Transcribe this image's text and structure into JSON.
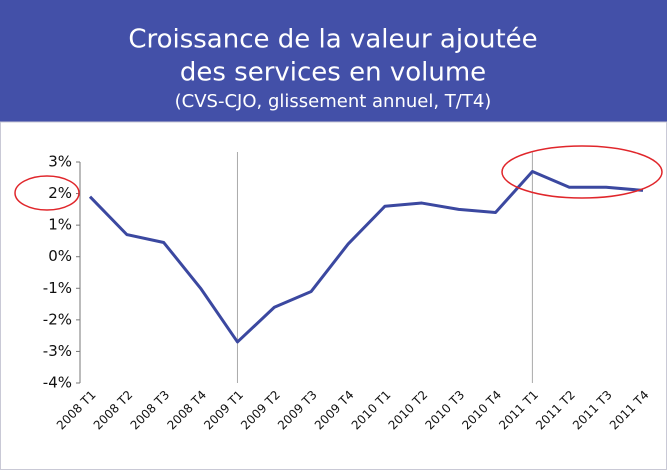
{
  "chart_data": {
    "type": "line",
    "title": [
      "Croissance de la valeur ajoutée",
      "des services en volume"
    ],
    "subtitle": "(CVS-CJO, glissement annuel, T/T4)",
    "categories": [
      "2008 T1",
      "2008 T2",
      "2008 T3",
      "2008 T4",
      "2009 T1",
      "2009 T2",
      "2009 T3",
      "2009 T4",
      "2010 T1",
      "2010 T2",
      "2010 T3",
      "2010 T4",
      "2011 T1",
      "2011 T2",
      "2011 T3",
      "2011 T4"
    ],
    "series": [
      {
        "color": "#3b48a0",
        "values": [
          1.9,
          0.7,
          0.45,
          -1.0,
          -2.7,
          -1.6,
          -1.1,
          0.4,
          1.6,
          1.7,
          1.5,
          1.4,
          2.7,
          2.2,
          2.2,
          2.1
        ]
      }
    ],
    "ylim": [
      -4,
      3
    ],
    "yticks": [
      {
        "value": -4,
        "label": "-4%"
      },
      {
        "value": -3,
        "label": "-3%"
      },
      {
        "value": -2,
        "label": "-2%"
      },
      {
        "value": -1,
        "label": "-1%"
      },
      {
        "value": 0,
        "label": "0%"
      },
      {
        "value": 1,
        "label": "1%"
      },
      {
        "value": 2,
        "label": "2%"
      },
      {
        "value": 3,
        "label": "3%"
      }
    ]
  }
}
